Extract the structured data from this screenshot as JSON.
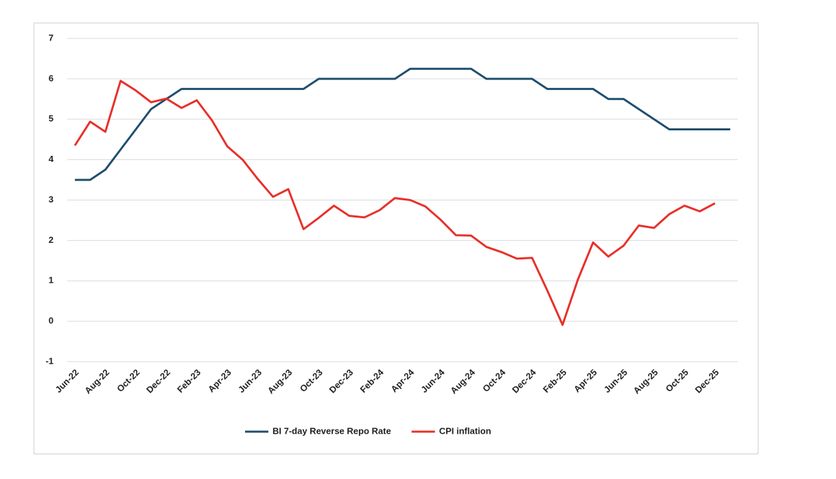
{
  "chart_data": {
    "type": "line",
    "categories": [
      "Jun-22",
      null,
      "Aug-22",
      null,
      "Oct-22",
      null,
      "Dec-22",
      null,
      "Feb-23",
      null,
      "Apr-23",
      null,
      "Jun-23",
      null,
      "Aug-23",
      null,
      "Oct-23",
      null,
      "Dec-23",
      null,
      "Feb-24",
      null,
      "Apr-24",
      null,
      "Jun-24",
      null,
      "Aug-24",
      null,
      "Oct-24",
      null,
      "Dec-24",
      null,
      "Feb-25",
      null,
      "Apr-25",
      null,
      "Jun-25",
      null,
      "Aug-25",
      null,
      "Oct-25",
      null,
      "Dec-25",
      null
    ],
    "series": [
      {
        "name": "BI 7-day Reverse Repo Rate",
        "color": "#1f4e6e",
        "values": [
          3.5,
          3.5,
          3.75,
          4.25,
          4.75,
          5.25,
          5.5,
          5.75,
          5.75,
          5.75,
          5.75,
          5.75,
          5.75,
          5.75,
          5.75,
          5.75,
          6.0,
          6.0,
          6.0,
          6.0,
          6.0,
          6.0,
          6.25,
          6.25,
          6.25,
          6.25,
          6.25,
          6.0,
          6.0,
          6.0,
          6.0,
          5.75,
          5.75,
          5.75,
          5.75,
          5.5,
          5.5,
          5.25,
          5.0,
          4.75,
          4.75,
          4.75,
          4.75,
          4.75
        ]
      },
      {
        "name": "CPI inflation",
        "color": "#e8302a",
        "values": [
          4.35,
          4.94,
          4.69,
          5.95,
          5.71,
          5.42,
          5.51,
          5.28,
          5.47,
          4.97,
          4.33,
          4.0,
          3.52,
          3.08,
          3.27,
          2.28,
          2.56,
          2.86,
          2.61,
          2.57,
          2.75,
          3.05,
          3.0,
          2.84,
          2.51,
          2.13,
          2.12,
          1.84,
          1.71,
          1.55,
          1.57,
          0.76,
          -0.09,
          1.03,
          1.95,
          1.6,
          1.87,
          2.37,
          2.31,
          2.65,
          2.86,
          2.72,
          2.92,
          null
        ]
      }
    ],
    "ylim": [
      -1,
      7
    ],
    "yticks": [
      -1,
      0,
      1,
      2,
      3,
      4,
      5,
      6,
      7
    ],
    "grid": true,
    "legend": "bottom"
  }
}
